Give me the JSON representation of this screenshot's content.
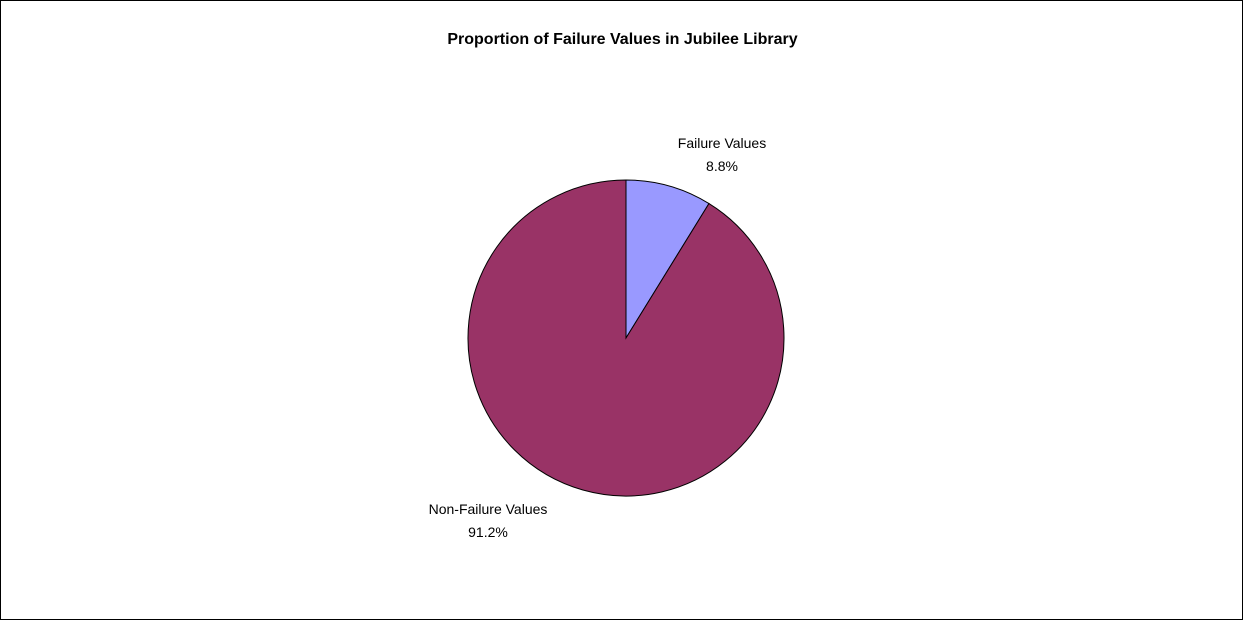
{
  "chart_data": {
    "type": "pie",
    "title": "Proportion of Failure Values in Jubilee Library",
    "slices": [
      {
        "label": "Failure Values",
        "percent_label": "8.8%",
        "value": 8.8,
        "color": "#9999FF"
      },
      {
        "label": "Non-Failure Values",
        "percent_label": "91.2%",
        "value": 91.2,
        "color": "#993366"
      }
    ],
    "legend": "none",
    "slice_outline_color": "#000000"
  }
}
